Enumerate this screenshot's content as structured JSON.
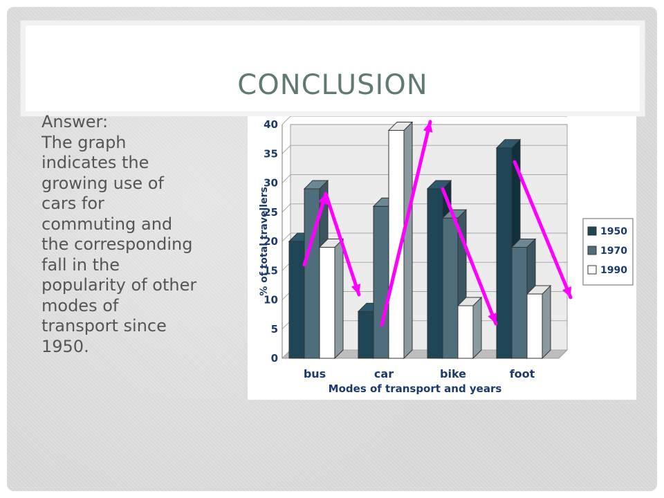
{
  "slide": {
    "title": "CONCLUSION",
    "answer_label": "Answer:",
    "body_lines": [
      "The graph",
      "indicates the",
      "growing use of",
      "cars for",
      "commuting and",
      "the corresponding",
      "fall in the",
      "popularity of other",
      "modes of",
      "transport since",
      "1950."
    ]
  },
  "colors": {
    "title": "#5f7a74",
    "text": "#555555",
    "arrow": "#ff00ff",
    "series_1950": "#1f4656",
    "series_1970": "#4f6e7b",
    "series_1990": "#ffffff"
  },
  "chart_data": {
    "type": "bar",
    "categories": [
      "bus",
      "car",
      "bike",
      "foot"
    ],
    "series": [
      {
        "name": "1950",
        "values": [
          20,
          8,
          29,
          36
        ]
      },
      {
        "name": "1970",
        "values": [
          29,
          26,
          24,
          19
        ]
      },
      {
        "name": "1990",
        "values": [
          19,
          39,
          9,
          11
        ]
      }
    ],
    "ylabel": "% of total travellers",
    "xlabel": "Modes of transport and years",
    "ylim": [
      0,
      40
    ],
    "yticks": [
      0,
      5,
      10,
      15,
      20,
      25,
      30,
      35,
      40
    ],
    "grid": true,
    "legend_position": "right",
    "three_d": true,
    "annotations": "magenta arrows showing trends: rise for car, fall for bike and foot"
  }
}
